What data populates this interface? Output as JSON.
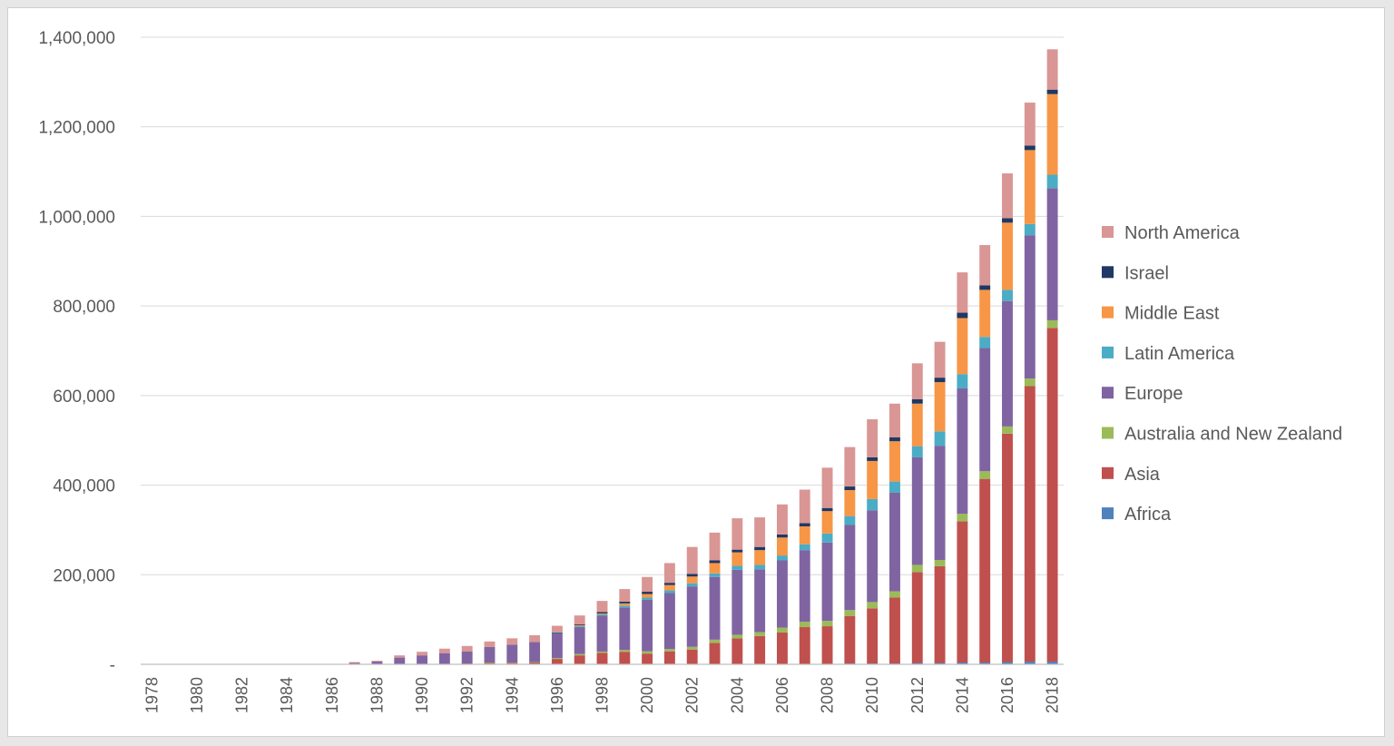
{
  "chart_data": {
    "type": "bar",
    "stacked": true,
    "title": "",
    "xlabel": "",
    "ylabel": "",
    "ylim": [
      0,
      1400000
    ],
    "yticks": [
      0,
      200000,
      400000,
      600000,
      800000,
      1000000,
      1200000,
      1400000
    ],
    "ytick_labels": [
      "-",
      "200,000",
      "400,000",
      "600,000",
      "800,000",
      "1,000,000",
      "1,200,000",
      "1,400,000"
    ],
    "grid": "horizontal",
    "legend_position": "right",
    "categories": [
      "1978",
      "1979",
      "1980",
      "1981",
      "1982",
      "1983",
      "1984",
      "1985",
      "1986",
      "1987",
      "1988",
      "1989",
      "1990",
      "1991",
      "1992",
      "1993",
      "1994",
      "1995",
      "1996",
      "1997",
      "1998",
      "1999",
      "2000",
      "2001",
      "2002",
      "2003",
      "2004",
      "2005",
      "2006",
      "2007",
      "2008",
      "2009",
      "2010",
      "2011",
      "2012",
      "2013",
      "2014",
      "2015",
      "2016",
      "2017",
      "2018"
    ],
    "xtick_labels": [
      "1978",
      "1980",
      "1982",
      "1984",
      "1986",
      "1988",
      "1990",
      "1992",
      "1994",
      "1996",
      "1998",
      "2000",
      "2002",
      "2004",
      "2006",
      "2008",
      "2010",
      "2012",
      "2014",
      "2016",
      "2018"
    ],
    "series": [
      {
        "name": "Africa",
        "color": "#4f81bd",
        "values": [
          0,
          0,
          0,
          0,
          0,
          0,
          0,
          0,
          0,
          0,
          0,
          0,
          0,
          0,
          0,
          0,
          0,
          0,
          0,
          0,
          500,
          1000,
          1000,
          1000,
          1000,
          1000,
          1000,
          1000,
          1000,
          1000,
          1000,
          2000,
          2000,
          2000,
          3000,
          3000,
          4000,
          4000,
          5000,
          6000,
          6000
        ]
      },
      {
        "name": "Asia",
        "color": "#c0504d",
        "values": [
          0,
          0,
          0,
          0,
          0,
          0,
          0,
          0,
          0,
          0,
          0,
          0,
          0,
          0,
          2000,
          3000,
          3000,
          4000,
          12000,
          20000,
          25000,
          27000,
          23000,
          28000,
          32000,
          47000,
          57000,
          62000,
          70000,
          82000,
          84000,
          106000,
          123000,
          147000,
          203000,
          216000,
          315000,
          410000,
          510000,
          615000,
          745000
        ]
      },
      {
        "name": "Australia and New Zealand",
        "color": "#9bbb59",
        "values": [
          0,
          0,
          0,
          0,
          0,
          0,
          0,
          0,
          0,
          0,
          0,
          0,
          0,
          0,
          0,
          1000,
          1000,
          1000,
          2000,
          3000,
          3000,
          4000,
          5000,
          5000,
          6000,
          7000,
          8000,
          9000,
          11000,
          12000,
          12000,
          13000,
          14000,
          14000,
          16000,
          14000,
          17000,
          17000,
          16000,
          17000,
          17000
        ]
      },
      {
        "name": "Europe",
        "color": "#8064a2",
        "values": [
          0,
          0,
          0,
          0,
          0,
          0,
          0,
          0,
          0,
          3000,
          6000,
          15000,
          20000,
          25000,
          27000,
          35000,
          40000,
          45000,
          55000,
          60000,
          80000,
          95000,
          115000,
          125000,
          135000,
          140000,
          145000,
          140000,
          150000,
          160000,
          175000,
          190000,
          205000,
          220000,
          240000,
          255000,
          280000,
          275000,
          280000,
          320000,
          295000
        ]
      },
      {
        "name": "Latin America",
        "color": "#4bacc6",
        "values": [
          0,
          0,
          0,
          0,
          0,
          0,
          0,
          0,
          0,
          0,
          0,
          0,
          0,
          0,
          0,
          0,
          0,
          0,
          1000,
          2000,
          3000,
          4000,
          5000,
          6000,
          7000,
          8000,
          9000,
          10000,
          11000,
          13000,
          20000,
          20000,
          25000,
          25000,
          25000,
          32000,
          32000,
          25000,
          25000,
          25000,
          30000
        ]
      },
      {
        "name": "Middle East",
        "color": "#f79646",
        "values": [
          0,
          0,
          0,
          0,
          0,
          0,
          0,
          0,
          0,
          0,
          0,
          0,
          0,
          0,
          0,
          0,
          0,
          0,
          0,
          2000,
          2000,
          5000,
          8000,
          12000,
          15000,
          23000,
          30000,
          33000,
          40000,
          40000,
          50000,
          58000,
          85000,
          90000,
          95000,
          110000,
          125000,
          105000,
          150000,
          165000,
          180000
        ]
      },
      {
        "name": "Israel",
        "color": "#1f3864",
        "values": [
          0,
          0,
          0,
          0,
          0,
          0,
          0,
          0,
          0,
          0,
          0,
          0,
          0,
          0,
          0,
          0,
          0,
          0,
          1000,
          2000,
          3000,
          4000,
          5000,
          5000,
          6000,
          6000,
          6000,
          7000,
          7000,
          7000,
          7000,
          8000,
          8000,
          9000,
          10000,
          10000,
          12000,
          10000,
          10000,
          10000,
          10000
        ]
      },
      {
        "name": "North America",
        "color": "#d99694",
        "values": [
          0,
          0,
          0,
          0,
          0,
          1000,
          1000,
          1000,
          1000,
          2000,
          2000,
          5000,
          8000,
          10000,
          12000,
          12000,
          14000,
          15000,
          15000,
          20000,
          25000,
          28000,
          33000,
          44000,
          60000,
          62000,
          70000,
          66000,
          67000,
          75000,
          90000,
          88000,
          85000,
          75000,
          80000,
          80000,
          90000,
          90000,
          100000,
          96000,
          90000
        ]
      }
    ],
    "legend_order": [
      "North America",
      "Israel",
      "Middle East",
      "Latin America",
      "Europe",
      "Australia and New Zealand",
      "Asia",
      "Africa"
    ]
  }
}
